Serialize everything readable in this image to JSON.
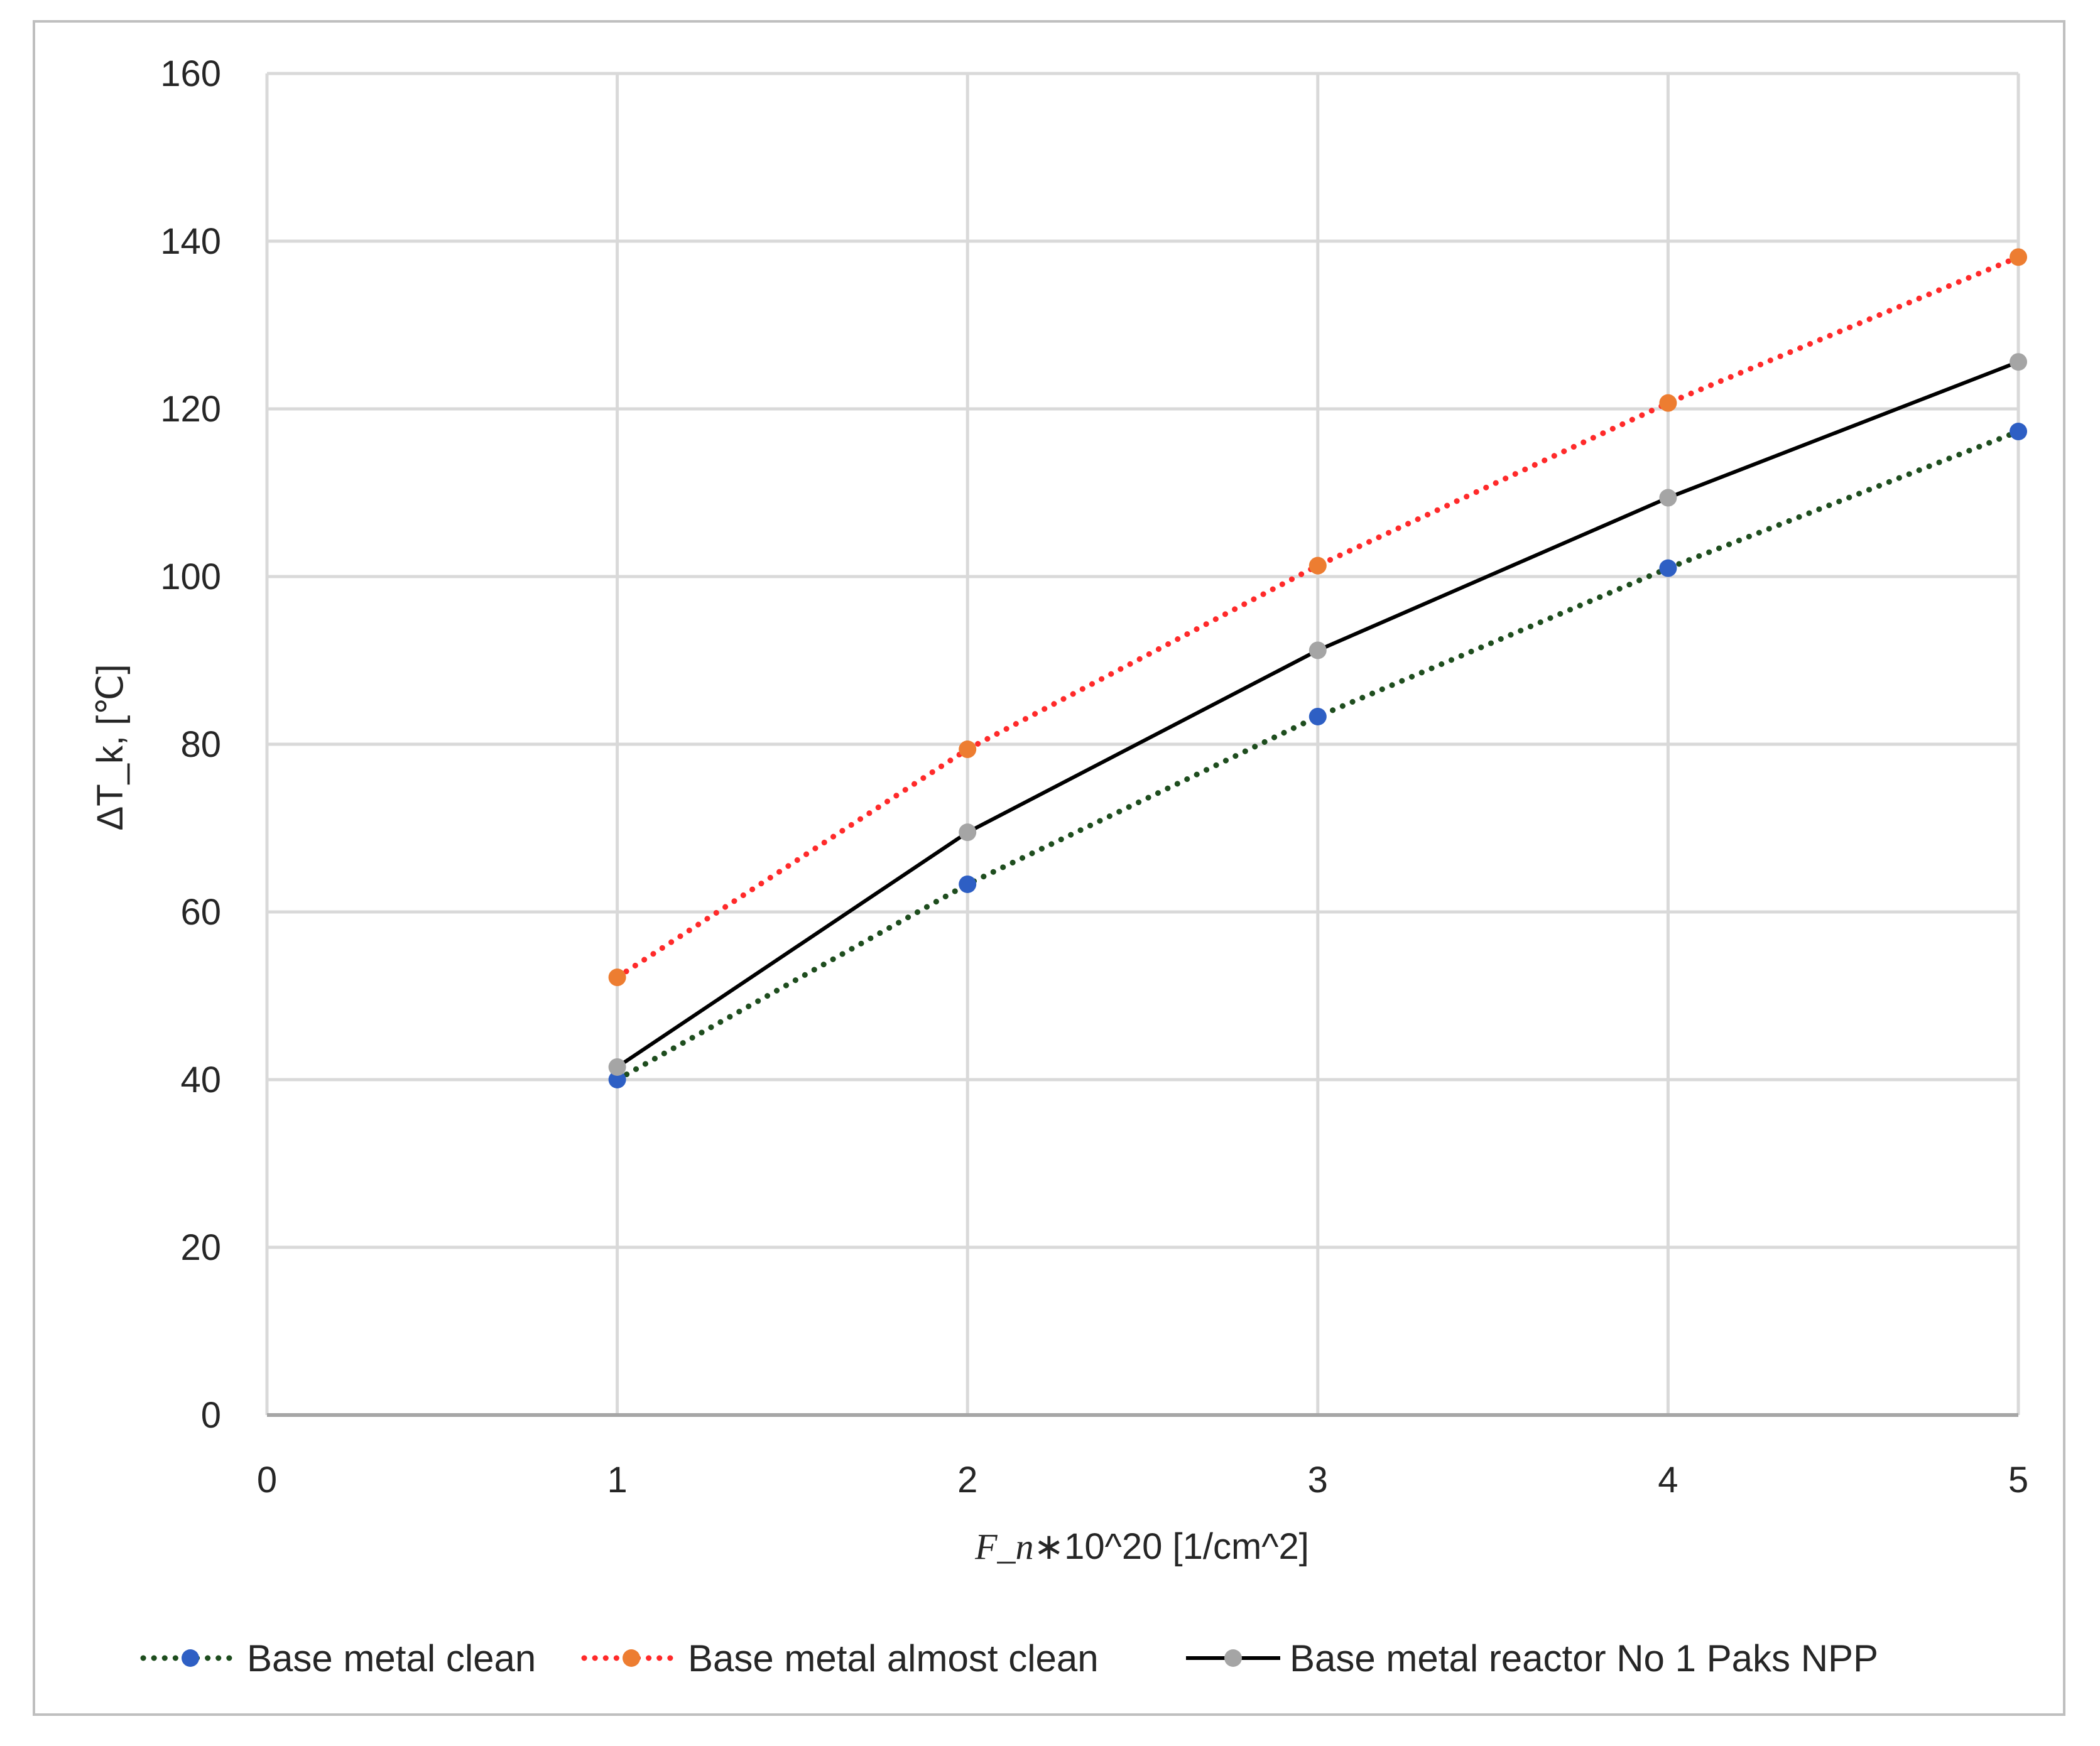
{
  "chart_data": {
    "type": "line",
    "title": "",
    "xlabel_italic": "F_n",
    "xlabel_rest": "∗10^20  [1/cm^2]",
    "ylabel": "ΔT_k, [℃]",
    "xlim": [
      0,
      5
    ],
    "ylim": [
      0,
      160
    ],
    "x_ticks": [
      "0",
      "1",
      "2",
      "3",
      "4",
      "5"
    ],
    "y_ticks": [
      "0",
      "20",
      "40",
      "60",
      "80",
      "100",
      "120",
      "140",
      "160"
    ],
    "grid": true,
    "legend_position": "bottom",
    "series": [
      {
        "name": "Base metal clean",
        "x": [
          1,
          2,
          3,
          4,
          5
        ],
        "y": [
          40,
          63.3,
          83.3,
          101,
          117.3
        ],
        "line_color": "#1e4d1e",
        "line_style": "dotted",
        "marker_color": "#2e5fc4"
      },
      {
        "name": "Base metal almost clean",
        "x": [
          1,
          2,
          3,
          4,
          5
        ],
        "y": [
          52.2,
          79.4,
          101.3,
          120.7,
          138.1
        ],
        "line_color": "#ff2a2a",
        "line_style": "dotted",
        "marker_color": "#ed7d31"
      },
      {
        "name": "Base metal reactor No 1 Paks NPP",
        "x": [
          1,
          2,
          3,
          4,
          5
        ],
        "y": [
          41.5,
          69.5,
          91.2,
          109.4,
          125.6
        ],
        "line_color": "#000000",
        "line_style": "solid",
        "marker_color": "#a5a5a5"
      }
    ]
  }
}
